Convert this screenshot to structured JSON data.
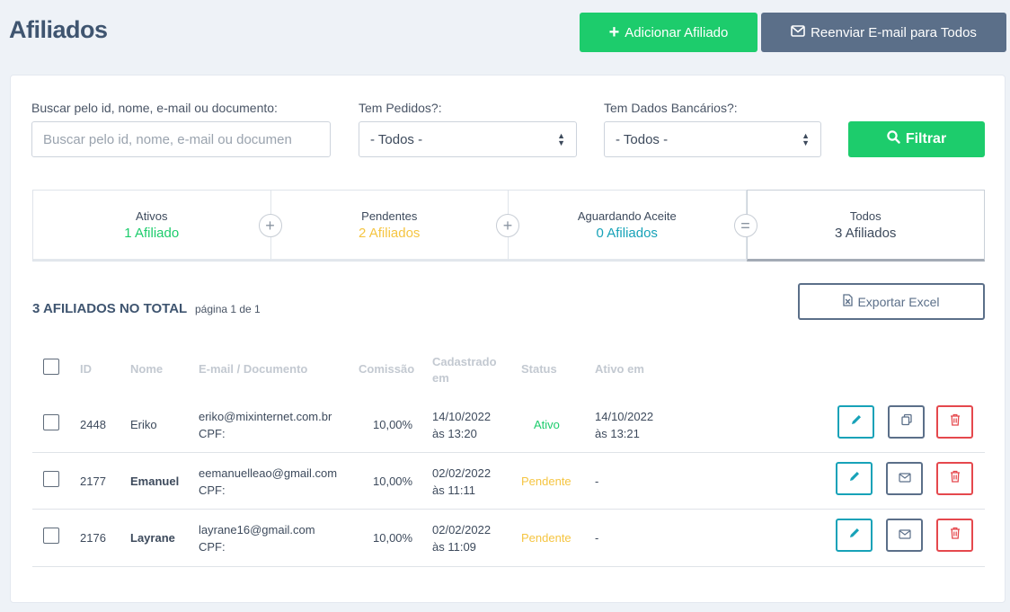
{
  "header": {
    "title": "Afiliados",
    "add_label": "Adicionar Afiliado",
    "resend_label": "Reenviar E-mail para Todos"
  },
  "filters": {
    "search_label": "Buscar pelo id, nome, e-mail ou documento:",
    "search_placeholder": "Buscar pelo id, nome, e-mail ou documen",
    "orders_label": "Tem Pedidos?:",
    "orders_value": "- Todos -",
    "bank_label": "Tem Dados Bancários?:",
    "bank_value": "- Todos -",
    "filter_label": "Filtrar"
  },
  "stats": [
    {
      "label": "Ativos",
      "value": "1 Afiliado",
      "color": "#1dcc6c",
      "op": "+"
    },
    {
      "label": "Pendentes",
      "value": "2 Afiliados",
      "color": "#f5c542",
      "op": "+"
    },
    {
      "label": "Aguardando Aceite",
      "value": "0 Afiliados",
      "color": "#17a2b8",
      "op": "="
    },
    {
      "label": "Todos",
      "value": "3 Afiliados",
      "color": "#3d4a5c",
      "op": ""
    }
  ],
  "summary": {
    "total": "3 AFILIADOS NO TOTAL",
    "page": "página 1 de 1",
    "export_label": "Exportar Excel"
  },
  "table": {
    "headers": {
      "id": "ID",
      "name": "Nome",
      "email": "E-mail / Documento",
      "commission": "Comissão",
      "created_1": "Cadastrado",
      "created_2": "em",
      "status": "Status",
      "active": "Ativo em"
    },
    "rows": [
      {
        "id": "2448",
        "name": "Eriko",
        "email": "eriko@mixinternet.com.br",
        "doc": "CPF:",
        "commission": "10,00%",
        "created_date": "14/10/2022",
        "created_time": "às 13:20",
        "status": "Ativo",
        "status_color": "#1dcc6c",
        "active_date": "14/10/2022",
        "active_time": "às 13:21",
        "mid_icon": "copy-icon"
      },
      {
        "id": "2177",
        "name": "Emanuel",
        "email": "eemanuelleao@gmail.com",
        "doc": "CPF:",
        "commission": "10,00%",
        "created_date": "02/02/2022",
        "created_time": "às 11:11",
        "status": "Pendente",
        "status_color": "#f5c542",
        "active_date": "-",
        "active_time": "",
        "mid_icon": "mail-icon"
      },
      {
        "id": "2176",
        "name": "Layrane",
        "email": "layrane16@gmail.com",
        "doc": "CPF:",
        "commission": "10,00%",
        "created_date": "02/02/2022",
        "created_time": "às 11:09",
        "status": "Pendente",
        "status_color": "#f5c542",
        "active_date": "-",
        "active_time": "",
        "mid_icon": "mail-icon"
      }
    ]
  }
}
